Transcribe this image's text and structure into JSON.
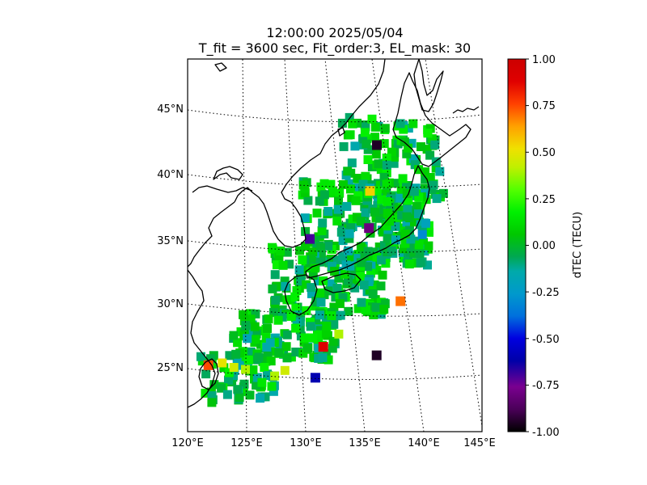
{
  "title": {
    "time_line": "12:00:00 2025/05/04",
    "params_line": "T_fit = 3600 sec, Fit_order:3, EL_mask: 30"
  },
  "map": {
    "lat_labels": [
      "45°N",
      "40°N",
      "35°N",
      "30°N",
      "25°N"
    ],
    "lon_labels": [
      "120°E",
      "125°E",
      "130°E",
      "135°E",
      "140°E",
      "145°E"
    ],
    "lat_range": [
      20,
      49
    ],
    "lon_range": [
      120,
      145
    ],
    "gridlines": "dotted"
  },
  "colorbar": {
    "label": "dTEC (TECU)",
    "ticks": [
      "1.00",
      "0.75",
      "0.50",
      "0.25",
      "0.00",
      "-0.25",
      "-0.50",
      "-0.75",
      "-1.00"
    ],
    "vmin": -1.0,
    "vmax": 1.0,
    "colormap": "nipy_spectral"
  },
  "chart_data": {
    "type": "heatmap",
    "title": "12:00:00 2025/05/04",
    "subtitle": "T_fit = 3600 sec, Fit_order:3, EL_mask: 30",
    "xlabel": "",
    "ylabel": "",
    "colorbar_label": "dTEC (TECU)",
    "value_range": [
      -1.0,
      1.0
    ],
    "notable_cells": [
      {
        "lon": 137.6,
        "lat": 42.4,
        "dtec": -0.95
      },
      {
        "lon": 136.7,
        "lat": 38.8,
        "dtec": 0.55
      },
      {
        "lon": 136.4,
        "lat": 35.9,
        "dtec": -0.8
      },
      {
        "lon": 131.0,
        "lat": 35.0,
        "dtec": -0.7
      },
      {
        "lon": 131.8,
        "lat": 26.6,
        "dtec": 0.9
      },
      {
        "lon": 136.4,
        "lat": 26.0,
        "dtec": -0.95
      },
      {
        "lon": 131.0,
        "lat": 24.2,
        "dtec": -0.6
      },
      {
        "lon": 121.8,
        "lat": 25.5,
        "dtec": 0.75
      },
      {
        "lon": 138.8,
        "lat": 30.3,
        "dtec": 0.7
      }
    ]
  }
}
